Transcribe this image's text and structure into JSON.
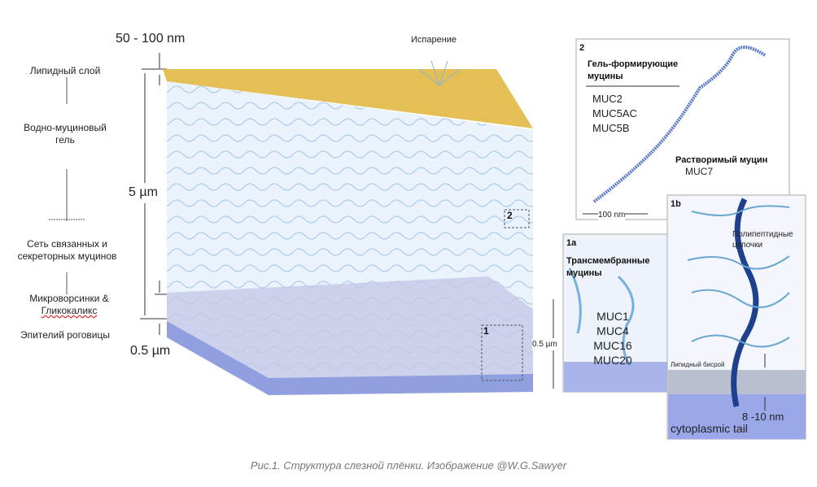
{
  "left_labels": [
    "Липидный слой",
    "Водно-муциновый гель",
    "Сеть связанных и секреторных муцинов",
    "Микроворсинки &",
    "Гликокаликс",
    "Эпителий роговицы"
  ],
  "dimensions": {
    "lipid": "50 - 100 nm",
    "gel": "5 µm",
    "epithelium": "0.5 µm"
  },
  "evaporation": "Испарение",
  "box_markers": [
    "1",
    "2"
  ],
  "panel2": {
    "id": "2",
    "title": "Гель-формирующие муцины",
    "items": [
      "MUC2",
      "MUC5AC",
      "MUC5B"
    ],
    "soluble": "Растворимый муцин",
    "soluble_item": "MUC7",
    "scale": "100 nm"
  },
  "panel1a": {
    "id": "1a",
    "title": "Трансмембранные муцины",
    "items": [
      "MUC1",
      "MUC4",
      "MUC16",
      "MUC20"
    ],
    "scale": "0.5 µm"
  },
  "panel1b": {
    "id": "1b",
    "chains": "Полипептидные цепочки",
    "bilayer": "Липидный бисрой",
    "thickness": "8 -10 nm",
    "tail": "cytoplasmic tail"
  },
  "caption": "Рис.1. Структура слезной плёнки. Изображение @W.G.Sawyer"
}
